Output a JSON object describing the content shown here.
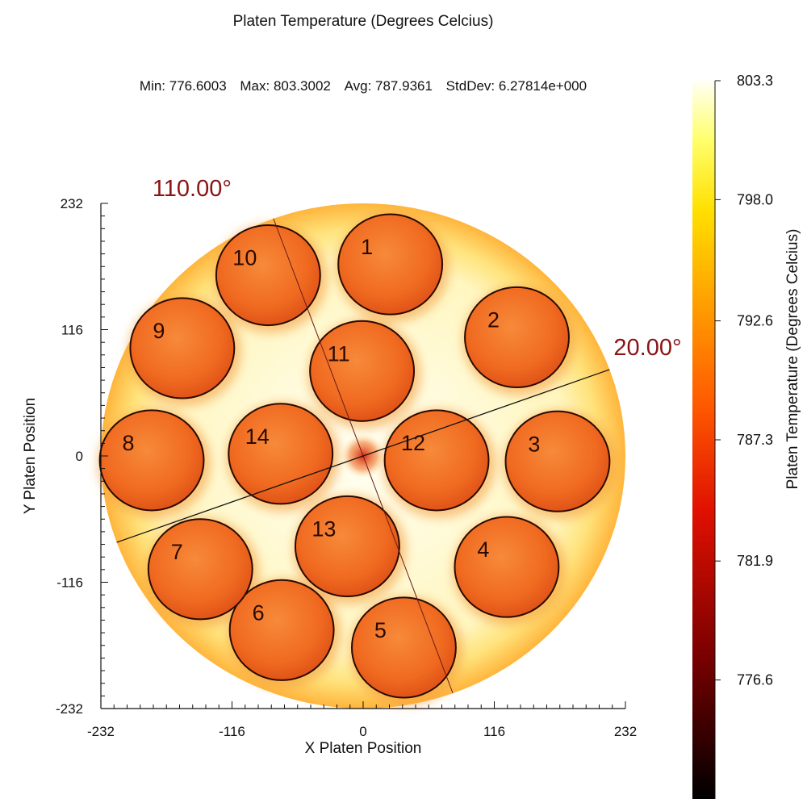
{
  "title": "Platen Temperature (Degrees Celcius)",
  "stats": {
    "min": "Min: 776.6003",
    "max": "Max: 803.3002",
    "avg": "Avg: 787.9361",
    "stddev": "StdDev: 6.27814e+000"
  },
  "chart_data": {
    "type": "heatmap",
    "title": "Platen Temperature (Degrees Celcius)",
    "xlabel": "X Platen Position",
    "ylabel": "Y Platen Position",
    "xlim": [
      -232,
      232
    ],
    "ylim": [
      -232,
      232
    ],
    "x_ticks": [
      "-232",
      "-116",
      "0",
      "116",
      "232"
    ],
    "y_ticks": [
      "232",
      "116",
      "0",
      "-116",
      "-232"
    ],
    "platen_radius": 232,
    "pockets": [
      {
        "id": "1",
        "x": 24,
        "y": 176,
        "r": 46
      },
      {
        "id": "2",
        "x": 136,
        "y": 109,
        "r": 46
      },
      {
        "id": "3",
        "x": 172,
        "y": -5,
        "r": 46
      },
      {
        "id": "4",
        "x": 127,
        "y": -102,
        "r": 46
      },
      {
        "id": "5",
        "x": 36,
        "y": -176,
        "r": 46
      },
      {
        "id": "6",
        "x": -72,
        "y": -160,
        "r": 46
      },
      {
        "id": "7",
        "x": -144,
        "y": -104,
        "r": 46
      },
      {
        "id": "8",
        "x": -187,
        "y": -4,
        "r": 46
      },
      {
        "id": "9",
        "x": -160,
        "y": 99,
        "r": 46
      },
      {
        "id": "10",
        "x": -84,
        "y": 166,
        "r": 46
      },
      {
        "id": "11",
        "x": -1,
        "y": 78,
        "r": 46
      },
      {
        "id": "12",
        "x": 65,
        "y": -4,
        "r": 46
      },
      {
        "id": "13",
        "x": -14,
        "y": -83,
        "r": 46
      },
      {
        "id": "14",
        "x": -73,
        "y": 2,
        "r": 46
      }
    ],
    "scan_lines": [
      {
        "label": "110.00°",
        "angle_deg": 110
      },
      {
        "label": "20.00°",
        "angle_deg": 20
      }
    ],
    "colorbar": {
      "label": "Platen Temperature (Degrees Celcius)",
      "ticks": [
        "803.3",
        "798.0",
        "792.6",
        "787.3",
        "781.9",
        "776.6"
      ],
      "range": [
        771.3,
        803.3
      ]
    },
    "colors": {
      "background": "#fffef0",
      "edge": "#ffc24a",
      "pocket": "#f06a20",
      "pocket_outline": "#2a0a00",
      "center_hotspot": "#e23010"
    }
  }
}
